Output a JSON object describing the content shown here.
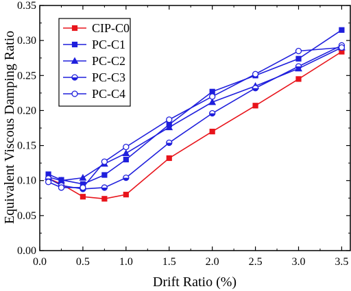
{
  "chart_data": {
    "type": "line",
    "xlabel": "Drift Ratio (%)",
    "ylabel": "Equivalent Viscous Damping Ratio",
    "xlim": [
      0.0,
      3.6
    ],
    "ylim": [
      0.0,
      0.35
    ],
    "xticks": [
      "0.0",
      "0.5",
      "1.0",
      "1.5",
      "2.0",
      "2.5",
      "3.0",
      "3.5"
    ],
    "yticks": [
      "0.00",
      "0.05",
      "0.10",
      "0.15",
      "0.20",
      "0.25",
      "0.30",
      "0.35"
    ],
    "legend_position": "top-left",
    "grid": false,
    "x": [
      0.1,
      0.25,
      0.5,
      0.75,
      1.0,
      1.5,
      2.0,
      2.5,
      3.0,
      3.5
    ],
    "series": [
      {
        "name": "CIP-C0",
        "color": "#e8141b",
        "marker": "square",
        "values": [
          0.103,
          0.095,
          0.077,
          0.074,
          0.08,
          0.132,
          0.17,
          0.207,
          0.245,
          0.284
        ]
      },
      {
        "name": "PC-C1",
        "color": "#1f1fdc",
        "marker": "square",
        "values": [
          0.109,
          0.101,
          0.095,
          0.108,
          0.13,
          0.18,
          0.227,
          0.25,
          0.274,
          0.315
        ]
      },
      {
        "name": "PC-C2",
        "color": "#1f1fdc",
        "marker": "triangle",
        "values": [
          0.105,
          0.1,
          0.104,
          0.124,
          0.139,
          0.176,
          0.212,
          0.235,
          0.26,
          0.29
        ]
      },
      {
        "name": "PC-C3",
        "color": "#1f1fdc",
        "marker": "half-circle",
        "values": [
          0.103,
          0.093,
          0.088,
          0.09,
          0.104,
          0.154,
          0.196,
          0.232,
          0.263,
          0.293
        ]
      },
      {
        "name": "PC-C4",
        "color": "#1f1fdc",
        "marker": "open-circle",
        "values": [
          0.098,
          0.09,
          0.09,
          0.127,
          0.148,
          0.187,
          0.22,
          0.252,
          0.285,
          0.29
        ]
      }
    ]
  }
}
